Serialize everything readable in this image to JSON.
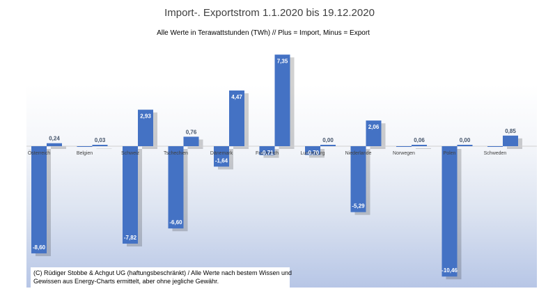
{
  "chart_data": {
    "type": "bar",
    "title": "Import-. Exportstrom 1.1.2020 bis 19.12.2020",
    "subtitle": "Alle Werte in Terawattstunden (TWh) // Plus = Import, Minus = Export",
    "categories": [
      "Österreich",
      "Belgien",
      "Schweiz",
      "Tschechien",
      "Dänemark",
      "Frankreich",
      "Luxemburg",
      "Niederlande",
      "Norwegen",
      "Polen",
      "Schweden"
    ],
    "series": [
      {
        "name": "Import",
        "values": [
          0.24,
          0.03,
          2.93,
          0.76,
          4.47,
          7.35,
          0.0,
          2.06,
          0.06,
          0.0,
          0.85
        ]
      },
      {
        "name": "Export",
        "values": [
          -8.6,
          0.0,
          -7.82,
          -6.6,
          -1.64,
          -0.71,
          -0.7,
          -5.29,
          0.0,
          -10.46,
          0.0
        ]
      }
    ],
    "labels": {
      "import": [
        "0,24",
        "0,03",
        "2,93",
        "0,76",
        "4,47",
        "7,35",
        "0,00",
        "2,06",
        "0,06",
        "0,00",
        "0,85"
      ],
      "export": [
        "-8,60",
        "",
        "-7,82",
        "-6,60",
        "-1,64",
        "-0,71",
        "-0,70",
        "-5,29",
        "",
        "-10,46",
        ""
      ]
    },
    "ylim": [
      -11.0,
      8.0
    ],
    "grid": false,
    "colors": {
      "bar": "#4472c4"
    },
    "footer": [
      "(C) Rüdiger Stobbe & Achgut UG (haftungsbeschränkt) / Alle Werte nach bestem Wissen und",
      "Gewissen aus Energy-Charts ermittelt, aber ohne jegliche Gewähr."
    ]
  }
}
